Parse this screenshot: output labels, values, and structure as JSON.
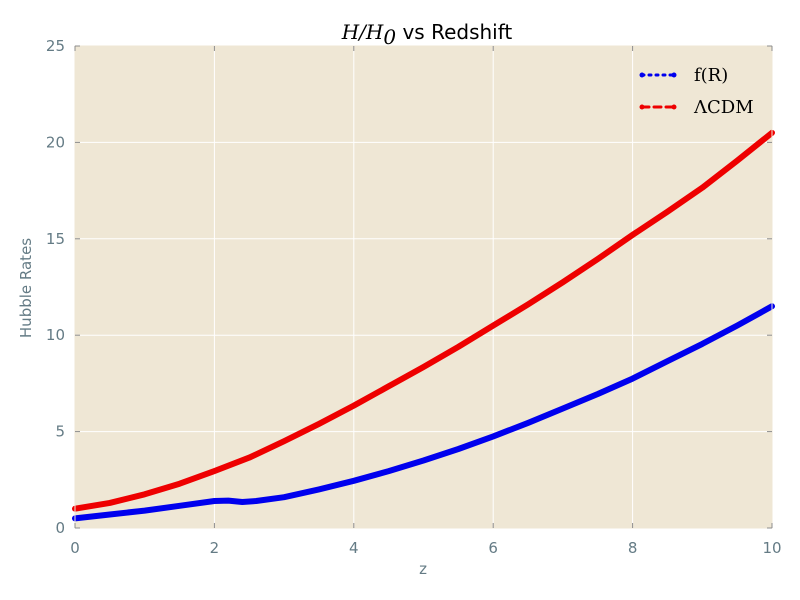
{
  "chart_data": {
    "type": "line",
    "title": "$H/H_0$ vs Redshift",
    "title_math": "H/H",
    "title_sub": "0",
    "title_text": " vs Redshift",
    "xlabel": "z",
    "ylabel": "Hubble Rates",
    "xlim": [
      0,
      10
    ],
    "ylim": [
      0,
      25
    ],
    "xticks": [
      0,
      2,
      4,
      6,
      8,
      10
    ],
    "yticks": [
      0,
      5,
      10,
      15,
      20,
      25
    ],
    "grid": true,
    "legend_position": "top-right",
    "background_color": "#efe7d5",
    "series": [
      {
        "name": "$f(R)$",
        "legend_label": "f(R)",
        "color": "#0000ee",
        "style": "dash-dot",
        "x": [
          0,
          0.5,
          1,
          1.5,
          2,
          2.2,
          2.4,
          2.6,
          3,
          3.5,
          4,
          4.5,
          5,
          5.5,
          6,
          6.5,
          7,
          7.5,
          8,
          8.5,
          9,
          9.5,
          10
        ],
        "y": [
          0.5,
          0.7,
          0.9,
          1.15,
          1.4,
          1.42,
          1.35,
          1.4,
          1.6,
          2.0,
          2.45,
          2.95,
          3.5,
          4.1,
          4.75,
          5.45,
          6.2,
          6.95,
          7.75,
          8.65,
          9.55,
          10.5,
          11.5
        ]
      },
      {
        "name": "$\\Lambda$CDM",
        "legend_label": "ΛCDM",
        "color": "#ee0000",
        "style": "dashed",
        "x": [
          0,
          0.5,
          1,
          1.5,
          2,
          2.5,
          3,
          3.5,
          4,
          4.5,
          5,
          5.5,
          6,
          6.5,
          7,
          7.5,
          8,
          8.5,
          9,
          9.5,
          10
        ],
        "y": [
          1.0,
          1.3,
          1.75,
          2.3,
          2.95,
          3.65,
          4.5,
          5.4,
          6.35,
          7.35,
          8.35,
          9.4,
          10.5,
          11.6,
          12.75,
          13.95,
          15.2,
          16.4,
          17.65,
          19.05,
          20.5
        ]
      }
    ]
  }
}
